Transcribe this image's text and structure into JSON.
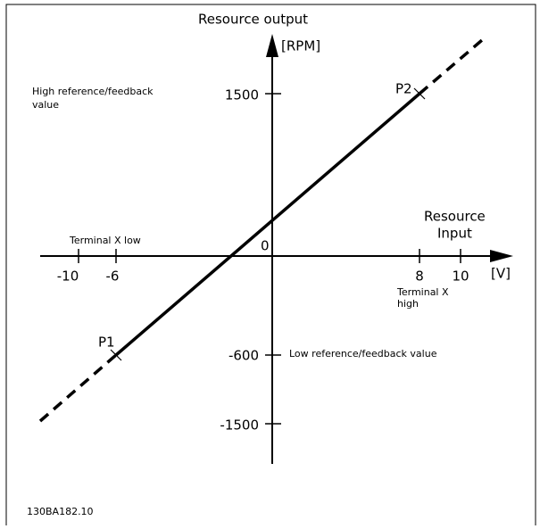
{
  "axes": {
    "y_title": "Resource output",
    "y_unit": "[RPM]",
    "x_title_1": "Resource",
    "x_title_2": "Input",
    "x_unit": "[V]",
    "origin": "0"
  },
  "y_ticks": [
    "1500",
    "-600",
    "-1500"
  ],
  "x_ticks": [
    "-10",
    "-6",
    "8",
    "10"
  ],
  "points": [
    "P1",
    "P2"
  ],
  "notes": {
    "high_1": "High reference/feedback",
    "high_2": "value",
    "low": "Low reference/feedback value",
    "term_low": "Terminal X low",
    "term_high_1": "Terminal X",
    "term_high_2": "high"
  },
  "footer": "130BA182.10"
}
